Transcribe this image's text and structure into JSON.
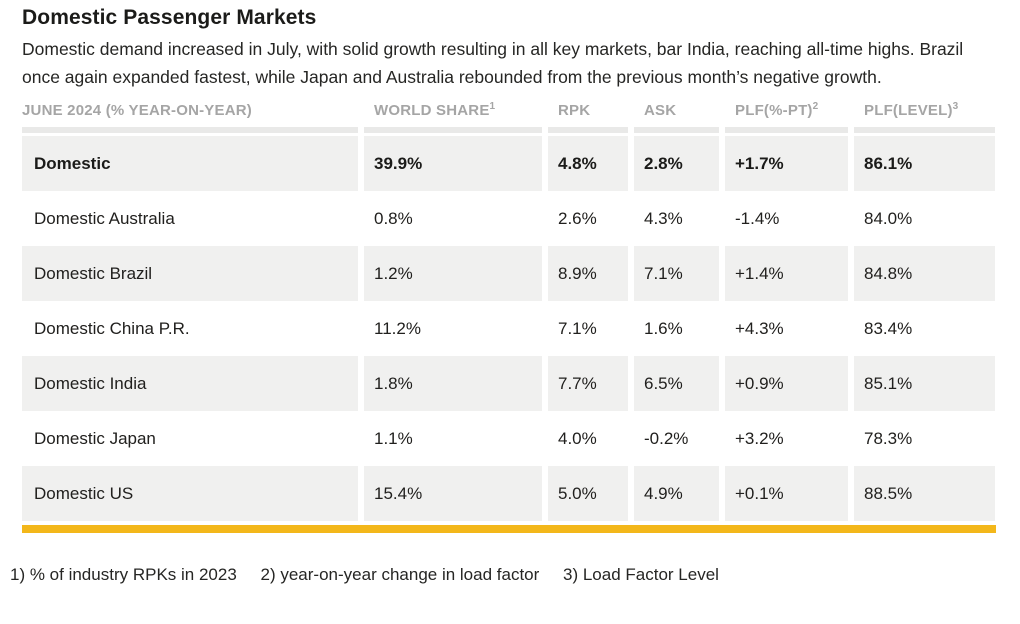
{
  "page": {
    "title": "Domestic Passenger Markets",
    "description": "Domestic demand increased in July, with solid growth resulting in all key markets, bar India, reaching all-time highs. Brazil once again expanded fastest, while Japan and Australia rebounded from the previous month’s negative growth."
  },
  "table": {
    "columns": [
      {
        "label": "JUNE 2024 (% YEAR-ON-YEAR)",
        "sup": ""
      },
      {
        "label": "WORLD SHARE",
        "sup": "1"
      },
      {
        "label": "RPK",
        "sup": ""
      },
      {
        "label": "ASK",
        "sup": ""
      },
      {
        "label": "PLF(%-PT)",
        "sup": "2"
      },
      {
        "label": "PLF(LEVEL)",
        "sup": "3"
      }
    ],
    "rows": [
      {
        "market": "Domestic",
        "world_share": "39.9%",
        "rpk": "4.8%",
        "ask": "2.8%",
        "plf_pt": "+1.7%",
        "plf_level": "86.1%"
      },
      {
        "market": "Domestic Australia",
        "world_share": "0.8%",
        "rpk": "2.6%",
        "ask": "4.3%",
        "plf_pt": "-1.4%",
        "plf_level": "84.0%"
      },
      {
        "market": "Domestic Brazil",
        "world_share": "1.2%",
        "rpk": "8.9%",
        "ask": "7.1%",
        "plf_pt": "+1.4%",
        "plf_level": "84.8%"
      },
      {
        "market": "Domestic China P.R.",
        "world_share": "11.2%",
        "rpk": "7.1%",
        "ask": "1.6%",
        "plf_pt": "+4.3%",
        "plf_level": "83.4%"
      },
      {
        "market": "Domestic India",
        "world_share": "1.8%",
        "rpk": "7.7%",
        "ask": "6.5%",
        "plf_pt": "+0.9%",
        "plf_level": "85.1%"
      },
      {
        "market": "Domestic Japan",
        "world_share": "1.1%",
        "rpk": "4.0%",
        "ask": "-0.2%",
        "plf_pt": "+3.2%",
        "plf_level": "78.3%"
      },
      {
        "market": "Domestic US",
        "world_share": "15.4%",
        "rpk": "5.0%",
        "ask": "4.9%",
        "plf_pt": "+0.1%",
        "plf_level": "88.5%"
      }
    ]
  },
  "footnotes": [
    "1) % of industry RPKs in 2023",
    "2) year-on-year change in load factor",
    "3) Load Factor Level"
  ],
  "colors": {
    "accent_bar": "#f3b71a",
    "row_shade": "#f0f0ef",
    "header_text": "#a5a5a5",
    "body_text": "#21201e"
  }
}
